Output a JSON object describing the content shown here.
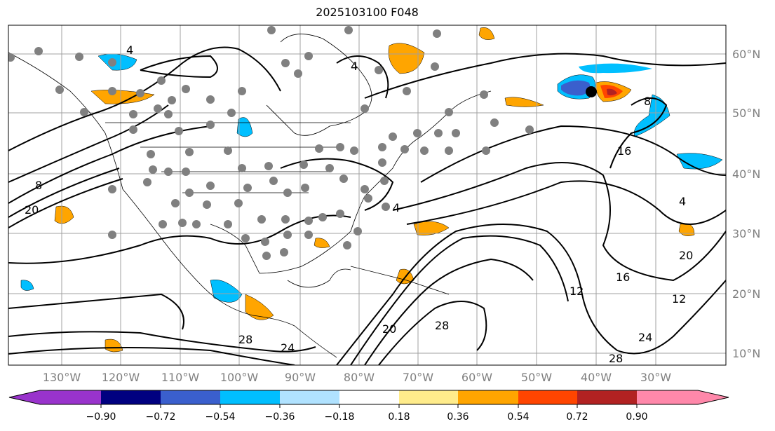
{
  "title": "2025103100 F048",
  "lat_labels": [
    "60°N",
    "50°N",
    "40°N",
    "30°N",
    "20°N",
    "10°N"
  ],
  "lon_labels": [
    "130°W",
    "120°W",
    "110°W",
    "100°W",
    "90°W",
    "80°W",
    "70°W",
    "60°W",
    "50°W",
    "40°W",
    "30°W"
  ],
  "contour_labels": [
    "4",
    "8",
    "12",
    "16",
    "20",
    "24",
    "28"
  ],
  "colorbar": {
    "colors": [
      "#9933cc",
      "#000080",
      "#3a5fcd",
      "#00bfff",
      "#b0e2ff",
      "#ffffff",
      "#ffec8b",
      "#ffa500",
      "#ff4500",
      "#b22222",
      "#ff88aa"
    ],
    "ticks": [
      "−0.90",
      "−0.72",
      "−0.54",
      "−0.36",
      "−0.18",
      "0.18",
      "0.36",
      "0.54",
      "0.72",
      "0.90"
    ],
    "extend": "both"
  },
  "grid_color": "#a0a0a0",
  "station_color": "#808080"
}
